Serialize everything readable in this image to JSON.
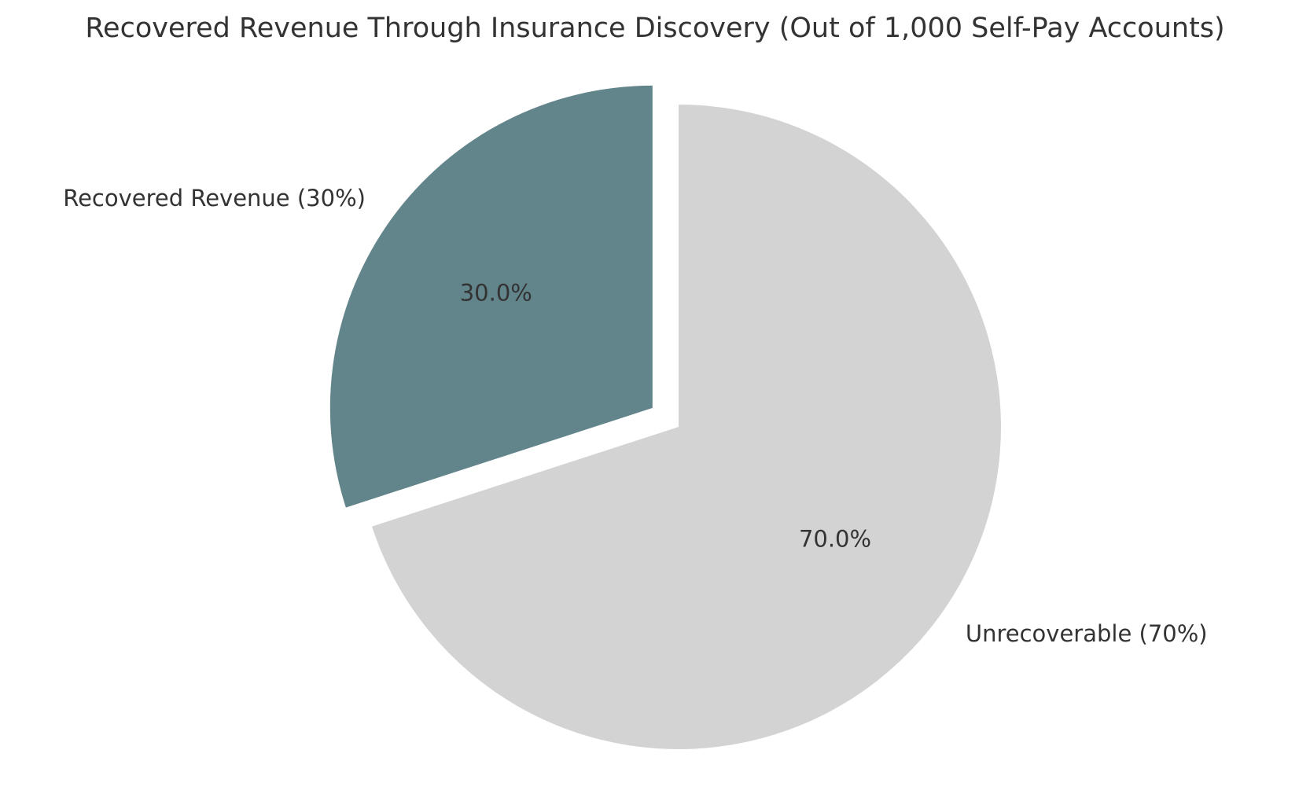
{
  "chart_data": {
    "type": "pie",
    "title": "Recovered Revenue Through Insurance Discovery (Out of 1,000 Self-Pay Accounts)",
    "categories": [
      "Recovered Revenue (30%)",
      "Unrecoverable (70%)"
    ],
    "values": [
      30,
      70
    ],
    "value_labels": [
      "30.0%",
      "70.0%"
    ],
    "colors": [
      "#62848b",
      "#d3d3d3"
    ],
    "explode": [
      0.1,
      0
    ],
    "start_angle": 90
  }
}
